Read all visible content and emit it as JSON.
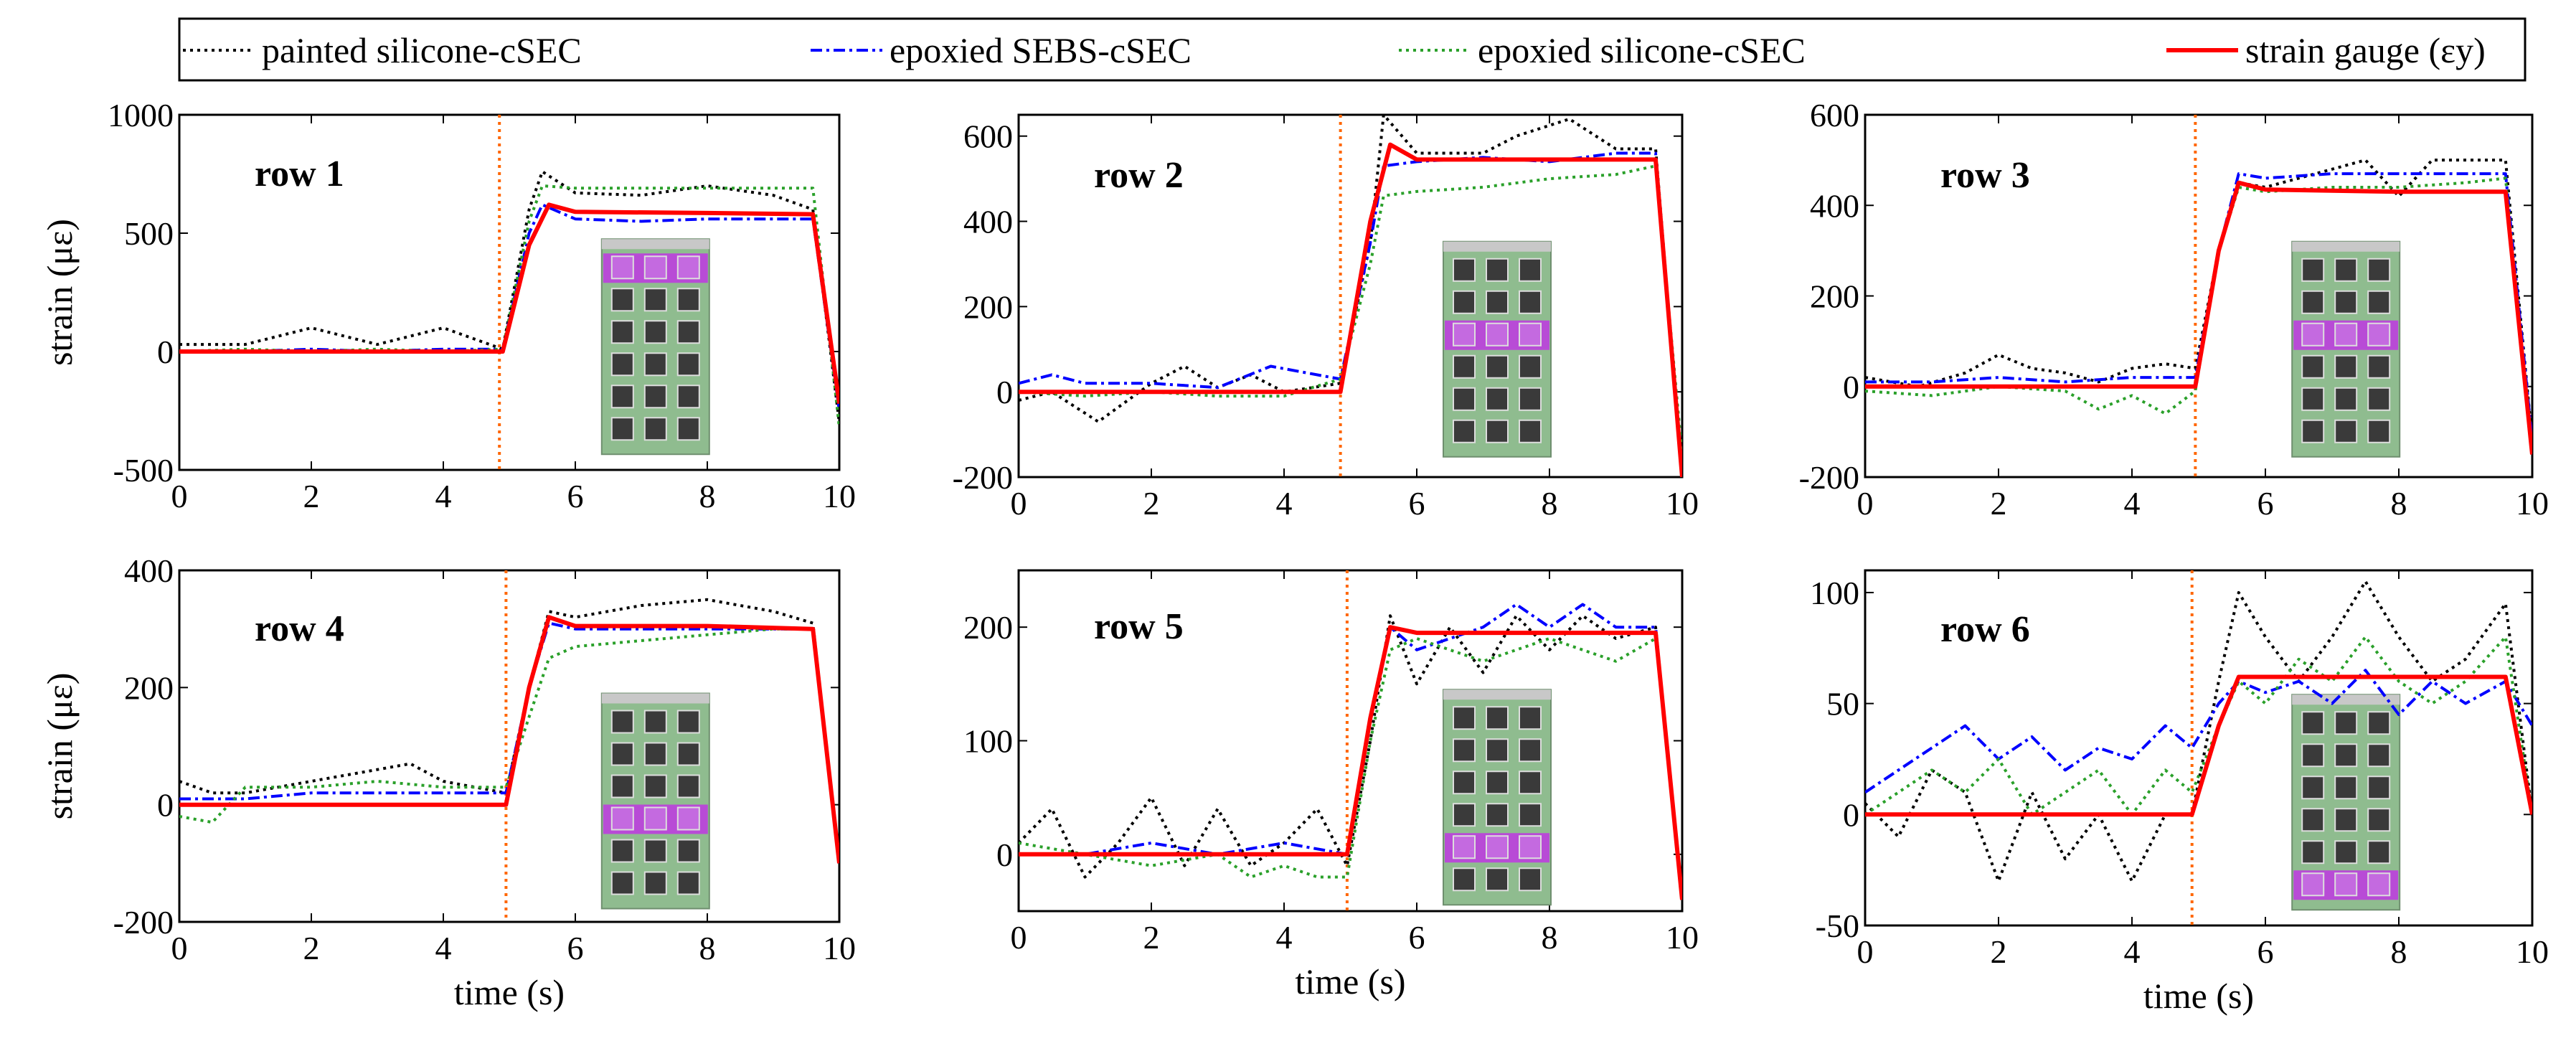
{
  "legend": {
    "items": [
      {
        "label": "painted silicone-cSEC",
        "color": "#000000",
        "dash": "dot"
      },
      {
        "label": "epoxied SEBS-cSEC",
        "color": "#0000ff",
        "dash": "dashdot"
      },
      {
        "label": "epoxied silicone-cSEC",
        "color": "#2aa02a",
        "dash": "dot"
      },
      {
        "label": "strain gauge (εy)",
        "color": "#ff0000",
        "dash": "solid"
      }
    ]
  },
  "colors": {
    "trigger_line": "#ff6600",
    "inset_board": "#8fbc8f",
    "inset_active": "#b84bd6",
    "inset_cell": "#3a3a3a"
  },
  "chart_data": [
    {
      "type": "line",
      "title": "row 1",
      "xlabel": "",
      "ylabel": "strain (με)",
      "xlim": [
        0,
        10
      ],
      "ylim": [
        -500,
        1000
      ],
      "xticks": [
        "0",
        "2",
        "4",
        "6",
        "8",
        "10"
      ],
      "yticks": [
        "-500",
        "0",
        "500",
        "1000"
      ],
      "trigger_x": 4.85,
      "active_row": 1,
      "series": [
        {
          "name": "painted silicone-cSEC",
          "x": [
            0,
            1,
            2,
            3,
            4,
            4.9,
            5.3,
            5.5,
            6,
            7,
            8,
            9,
            9.6,
            10
          ],
          "values": [
            30,
            30,
            100,
            30,
            100,
            10,
            600,
            760,
            670,
            660,
            700,
            660,
            600,
            -300
          ]
        },
        {
          "name": "epoxied SEBS-cSEC",
          "x": [
            0,
            1,
            2,
            3,
            4,
            4.9,
            5.3,
            5.5,
            6,
            7,
            8,
            9,
            9.6,
            10
          ],
          "values": [
            0,
            0,
            10,
            0,
            10,
            10,
            500,
            620,
            560,
            550,
            560,
            560,
            560,
            -250
          ]
        },
        {
          "name": "epoxied silicone-cSEC",
          "x": [
            0,
            1,
            2,
            3,
            4,
            4.9,
            5.3,
            5.5,
            6,
            7,
            8,
            9,
            9.6,
            10
          ],
          "values": [
            0,
            10,
            0,
            10,
            0,
            10,
            550,
            700,
            690,
            690,
            690,
            690,
            690,
            -320
          ]
        },
        {
          "name": "strain gauge (εy)",
          "x": [
            0,
            4.9,
            5.3,
            5.6,
            6,
            8,
            9.6,
            10
          ],
          "values": [
            0,
            0,
            450,
            620,
            590,
            585,
            580,
            -220
          ]
        }
      ]
    },
    {
      "type": "line",
      "title": "row 2",
      "xlabel": "",
      "ylabel": "",
      "xlim": [
        0,
        10
      ],
      "ylim": [
        -200,
        650
      ],
      "xticks": [
        "0",
        "2",
        "4",
        "6",
        "8",
        "10"
      ],
      "yticks": [
        "-200",
        "0",
        "200",
        "400",
        "600"
      ],
      "trigger_x": 4.85,
      "active_row": 3,
      "series": [
        {
          "name": "painted silicone-cSEC",
          "x": [
            0,
            0.5,
            1.2,
            2,
            2.5,
            3,
            3.5,
            4,
            4.85,
            5.3,
            5.5,
            6,
            7,
            7.5,
            8.3,
            9,
            9.6,
            10
          ],
          "values": [
            -20,
            0,
            -70,
            20,
            60,
            10,
            40,
            0,
            20,
            350,
            650,
            560,
            560,
            600,
            640,
            570,
            570,
            -200
          ]
        },
        {
          "name": "epoxied SEBS-cSEC",
          "x": [
            0,
            0.5,
            1,
            2,
            3,
            3.8,
            4.85,
            5.3,
            5.5,
            6,
            7,
            8,
            9,
            9.6,
            10
          ],
          "values": [
            20,
            40,
            20,
            20,
            10,
            60,
            30,
            350,
            530,
            540,
            550,
            540,
            560,
            560,
            -200
          ]
        },
        {
          "name": "epoxied silicone-cSEC",
          "x": [
            0,
            1,
            2,
            3,
            4,
            4.85,
            5.3,
            5.5,
            6,
            7,
            8,
            9,
            9.6,
            10
          ],
          "values": [
            0,
            -10,
            0,
            -10,
            -10,
            30,
            300,
            460,
            470,
            480,
            500,
            510,
            530,
            -150
          ]
        },
        {
          "name": "strain gauge (εy)",
          "x": [
            0,
            4.85,
            5.3,
            5.6,
            6,
            8,
            9.6,
            10
          ],
          "values": [
            0,
            0,
            400,
            580,
            545,
            545,
            545,
            -200
          ]
        }
      ]
    },
    {
      "type": "line",
      "title": "row 3",
      "xlabel": "",
      "ylabel": "",
      "xlim": [
        0,
        10
      ],
      "ylim": [
        -200,
        600
      ],
      "xticks": [
        "0",
        "2",
        "4",
        "6",
        "8",
        "10"
      ],
      "yticks": [
        "-200",
        "0",
        "200",
        "400",
        "600"
      ],
      "trigger_x": 4.95,
      "active_row": 3,
      "series": [
        {
          "name": "painted silicone-cSEC",
          "x": [
            0,
            0.8,
            1.5,
            2,
            2.5,
            3,
            3.5,
            4,
            4.5,
            4.95,
            5.3,
            5.6,
            6,
            7,
            7.5,
            8,
            8.5,
            9,
            9.6,
            10
          ],
          "values": [
            20,
            0,
            30,
            70,
            40,
            30,
            10,
            40,
            50,
            40,
            300,
            450,
            440,
            480,
            500,
            420,
            500,
            500,
            500,
            -120
          ]
        },
        {
          "name": "epoxied SEBS-cSEC",
          "x": [
            0,
            1,
            2,
            3,
            4,
            4.95,
            5.3,
            5.6,
            6,
            7,
            8,
            9,
            9.6,
            10
          ],
          "values": [
            10,
            10,
            20,
            10,
            20,
            20,
            300,
            470,
            460,
            470,
            470,
            470,
            470,
            -120
          ]
        },
        {
          "name": "epoxied silicone-cSEC",
          "x": [
            0,
            1,
            2,
            3,
            3.5,
            4,
            4.5,
            4.95,
            5.3,
            5.6,
            6,
            7,
            8,
            9,
            9.6,
            10
          ],
          "values": [
            -10,
            -20,
            0,
            -10,
            -50,
            -20,
            -60,
            -10,
            300,
            440,
            430,
            440,
            440,
            450,
            460,
            -150
          ]
        },
        {
          "name": "strain gauge (εy)",
          "x": [
            0,
            4.95,
            5.3,
            5.6,
            6,
            8,
            9.6,
            10
          ],
          "values": [
            0,
            0,
            300,
            450,
            435,
            430,
            430,
            -150
          ]
        }
      ]
    },
    {
      "type": "line",
      "title": "row 4",
      "xlabel": "time (s)",
      "ylabel": "strain (με)",
      "xlim": [
        0,
        10
      ],
      "ylim": [
        -200,
        400
      ],
      "xticks": [
        "0",
        "2",
        "4",
        "6",
        "8",
        "10"
      ],
      "yticks": [
        "-200",
        "0",
        "200",
        "400"
      ],
      "trigger_x": 4.95,
      "active_row": 4,
      "series": [
        {
          "name": "painted silicone-cSEC",
          "x": [
            0,
            0.5,
            1,
            2,
            3,
            3.5,
            4,
            4.95,
            5.3,
            5.6,
            6,
            7,
            8,
            9,
            9.6,
            10
          ],
          "values": [
            40,
            20,
            20,
            40,
            60,
            70,
            40,
            20,
            200,
            330,
            320,
            340,
            350,
            330,
            310,
            -100
          ]
        },
        {
          "name": "epoxied SEBS-cSEC",
          "x": [
            0,
            1,
            2,
            3,
            4,
            4.95,
            5.3,
            5.6,
            6,
            7,
            8,
            9,
            9.6,
            10
          ],
          "values": [
            10,
            10,
            20,
            20,
            20,
            20,
            200,
            310,
            300,
            300,
            300,
            300,
            300,
            -100
          ]
        },
        {
          "name": "epoxied silicone-cSEC",
          "x": [
            0,
            0.5,
            1,
            2,
            3,
            4,
            4.95,
            5.3,
            5.6,
            6,
            7,
            8,
            9,
            9.6,
            10
          ],
          "values": [
            -20,
            -30,
            30,
            30,
            40,
            30,
            30,
            150,
            250,
            270,
            280,
            290,
            300,
            300,
            -90
          ]
        },
        {
          "name": "strain gauge (εy)",
          "x": [
            0,
            4.95,
            5.3,
            5.6,
            6,
            8,
            9.6,
            10
          ],
          "values": [
            0,
            0,
            200,
            320,
            305,
            305,
            300,
            -100
          ]
        }
      ]
    },
    {
      "type": "line",
      "title": "row 5",
      "xlabel": "time (s)",
      "ylabel": "",
      "xlim": [
        0,
        10
      ],
      "ylim": [
        -50,
        250
      ],
      "xticks": [
        "0",
        "2",
        "4",
        "6",
        "8",
        "10"
      ],
      "yticks": [
        "0",
        "100",
        "200"
      ],
      "trigger_x": 4.95,
      "active_row": 5,
      "series": [
        {
          "name": "painted silicone-cSEC",
          "x": [
            0,
            0.5,
            1,
            1.5,
            2,
            2.5,
            3,
            3.5,
            4,
            4.5,
            4.95,
            5.3,
            5.6,
            6,
            6.5,
            7,
            7.5,
            8,
            8.5,
            9,
            9.6,
            10
          ],
          "values": [
            10,
            40,
            -20,
            10,
            50,
            -10,
            40,
            -10,
            10,
            40,
            -10,
            100,
            210,
            150,
            200,
            160,
            210,
            180,
            210,
            190,
            200,
            -40
          ]
        },
        {
          "name": "epoxied SEBS-cSEC",
          "x": [
            0,
            1,
            2,
            3,
            4,
            4.95,
            5.3,
            5.6,
            6,
            7,
            7.5,
            8,
            8.5,
            9,
            9.6,
            10
          ],
          "values": [
            0,
            0,
            10,
            0,
            10,
            0,
            120,
            200,
            180,
            200,
            220,
            200,
            220,
            200,
            200,
            -40
          ]
        },
        {
          "name": "epoxied silicone-cSEC",
          "x": [
            0,
            1,
            2,
            3,
            3.5,
            4,
            4.5,
            4.95,
            5.3,
            5.6,
            6,
            7,
            8,
            9,
            9.6,
            10
          ],
          "values": [
            10,
            0,
            -10,
            0,
            -20,
            -10,
            -20,
            -20,
            100,
            180,
            190,
            170,
            190,
            170,
            190,
            -40
          ]
        },
        {
          "name": "strain gauge (εy)",
          "x": [
            0,
            4.95,
            5.3,
            5.6,
            6,
            8,
            9.6,
            10
          ],
          "values": [
            0,
            0,
            120,
            200,
            195,
            195,
            195,
            -40
          ]
        }
      ]
    },
    {
      "type": "line",
      "title": "row 6",
      "xlabel": "time (s)",
      "ylabel": "",
      "xlim": [
        0,
        10
      ],
      "ylim": [
        -50,
        110
      ],
      "xticks": [
        "0",
        "2",
        "4",
        "6",
        "8",
        "10"
      ],
      "yticks": [
        "-50",
        "0",
        "50",
        "100"
      ],
      "trigger_x": 4.9,
      "active_row": 6,
      "series": [
        {
          "name": "painted silicone-cSEC",
          "x": [
            0,
            0.5,
            1,
            1.5,
            2,
            2.5,
            3,
            3.5,
            4,
            4.5,
            4.9,
            5.3,
            5.6,
            6,
            6.5,
            7,
            7.5,
            8,
            8.5,
            9,
            9.6,
            10
          ],
          "values": [
            5,
            -10,
            20,
            10,
            -30,
            10,
            -20,
            0,
            -30,
            0,
            0,
            60,
            100,
            80,
            60,
            80,
            105,
            80,
            60,
            70,
            95,
            0
          ]
        },
        {
          "name": "epoxied SEBS-cSEC",
          "x": [
            0,
            0.5,
            1,
            1.5,
            2,
            2.5,
            3,
            3.5,
            4,
            4.5,
            4.9,
            5.3,
            5.6,
            6,
            6.5,
            7,
            7.5,
            8,
            8.5,
            9,
            9.6,
            10
          ],
          "values": [
            10,
            20,
            30,
            40,
            25,
            35,
            20,
            30,
            25,
            40,
            30,
            50,
            60,
            55,
            60,
            50,
            65,
            45,
            60,
            50,
            60,
            40
          ]
        },
        {
          "name": "epoxied silicone-cSEC",
          "x": [
            0,
            0.5,
            1,
            1.5,
            2,
            2.5,
            3,
            3.5,
            4,
            4.5,
            4.9,
            5.3,
            5.6,
            6,
            6.5,
            7,
            7.5,
            8,
            8.5,
            9,
            9.6,
            10
          ],
          "values": [
            0,
            10,
            20,
            10,
            25,
            0,
            10,
            20,
            0,
            20,
            10,
            40,
            60,
            50,
            70,
            60,
            80,
            60,
            50,
            60,
            80,
            0
          ]
        },
        {
          "name": "strain gauge (εy)",
          "x": [
            0,
            4.9,
            5.3,
            5.6,
            6,
            8,
            9.6,
            10
          ],
          "values": [
            0,
            0,
            40,
            62,
            62,
            62,
            62,
            0
          ]
        }
      ]
    }
  ]
}
